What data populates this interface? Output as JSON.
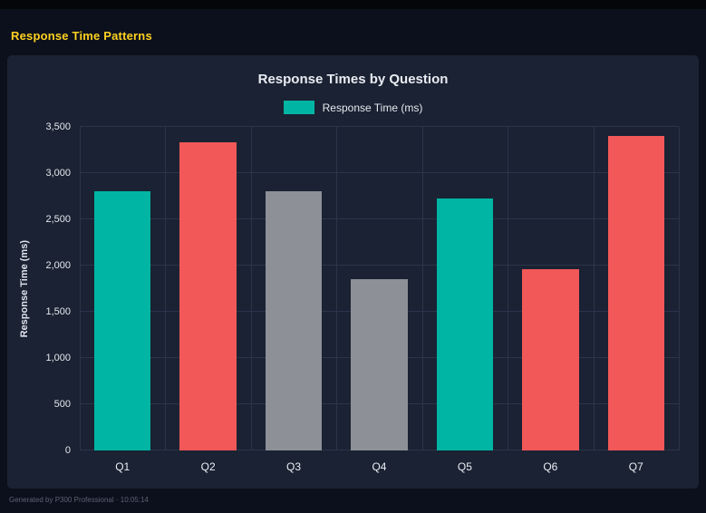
{
  "page": {
    "title": "Response Time Patterns",
    "title_color": "#ffd21f",
    "footer": "Generated by P300 Professional · 10:05:14"
  },
  "chart_data": {
    "type": "bar",
    "title": "Response Times by Question",
    "legend": [
      {
        "label": "Response Time (ms)",
        "color": "#00b5a3"
      }
    ],
    "categories": [
      "Q1",
      "Q2",
      "Q3",
      "Q4",
      "Q5",
      "Q6",
      "Q7"
    ],
    "values": [
      2800,
      3330,
      2800,
      1850,
      2730,
      1960,
      3400
    ],
    "bar_colors": [
      "#00b5a3",
      "#f25858",
      "#8e9097",
      "#8e9097",
      "#00b5a3",
      "#f25858",
      "#f25858"
    ],
    "xlabel": "",
    "ylabel": "Response Time (ms)",
    "ylim": [
      0,
      3500
    ],
    "yticks": [
      0,
      500,
      1000,
      1500,
      2000,
      2500,
      3000,
      3500
    ],
    "ytick_labels": [
      "0",
      "500",
      "1,000",
      "1,500",
      "2,000",
      "2,500",
      "3,000",
      "3,500"
    ],
    "grid": true,
    "legend_position": "top",
    "background_color": "#1a2233",
    "grid_color": "#2b344a"
  }
}
